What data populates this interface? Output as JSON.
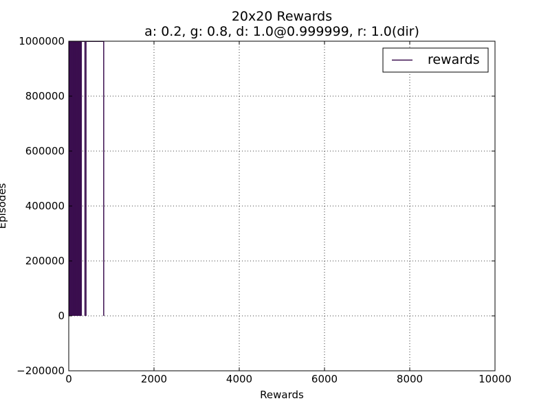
{
  "chart_data": {
    "type": "line",
    "title": "20x20 Rewards",
    "subtitle": "a: 0.2, g: 0.8, d: 1.0@0.999999, r: 1.0(dir)",
    "xlabel": "Rewards",
    "ylabel": "Episodes",
    "xlim": [
      0,
      10000
    ],
    "ylim": [
      -200000,
      1000000
    ],
    "xticks": [
      0,
      2000,
      4000,
      6000,
      8000,
      10000
    ],
    "yticks": [
      -200000,
      0,
      200000,
      400000,
      600000,
      800000,
      1000000
    ],
    "xtick_labels": [
      "0",
      "2000",
      "4000",
      "6000",
      "8000",
      "10000"
    ],
    "ytick_labels": [
      "−200000",
      "0",
      "200000",
      "400000",
      "600000",
      "800000",
      "1000000"
    ],
    "grid": true,
    "legend_position": "top-right",
    "series": [
      {
        "name": "rewards",
        "color": "#3b0f4f",
        "x_dense_range": [
          0,
          300
        ],
        "x_spikes": [
          380,
          405,
          820
        ],
        "y_range": [
          0,
          1000000
        ]
      }
    ]
  }
}
